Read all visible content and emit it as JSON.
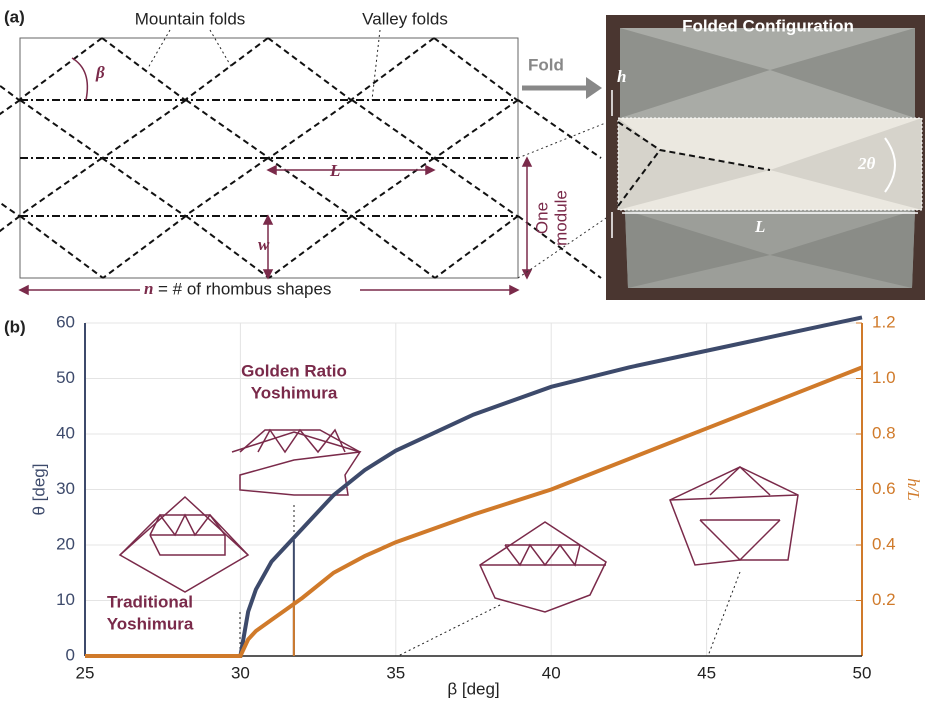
{
  "panel_a": {
    "label": "(a)",
    "mountain": "Mountain folds",
    "valley": "Valley folds",
    "beta": "β",
    "L": "L",
    "w": "w",
    "n": "n",
    "n_desc": "= # of rhombus shapes",
    "module": [
      "One",
      "module"
    ],
    "fold": "Fold",
    "photo_title": "Folded Configuration",
    "h": "h",
    "two_theta": "2θ",
    "photo_L": "L"
  },
  "chart_data": {
    "type": "line",
    "panel_label": "(b)",
    "x": [
      25,
      30,
      30.25,
      30.5,
      31,
      31.5,
      32,
      33,
      34,
      35,
      37.5,
      40,
      42.5,
      45,
      47.5,
      50
    ],
    "series": [
      {
        "color": "#3d4a6b",
        "values": [
          0,
          0,
          8,
          12,
          17,
          20,
          23,
          29,
          33.5,
          37,
          43.5,
          48.5,
          52,
          55,
          58,
          61
        ]
      },
      {
        "color": "#d07a2a",
        "axis": "y2",
        "values": [
          0,
          0,
          0.06,
          0.09,
          0.13,
          0.17,
          0.21,
          0.3,
          0.36,
          0.41,
          0.51,
          0.6,
          0.71,
          0.82,
          0.93,
          1.04
        ]
      }
    ],
    "guides": [
      {
        "x": 31.72,
        "y": 20.9
      },
      {
        "x": 31.72,
        "y": 0.2,
        "axis": "y2"
      }
    ],
    "xlim": [
      25,
      50
    ],
    "xticks": [
      25,
      30,
      35,
      40,
      45,
      50
    ],
    "ylim": [
      0,
      60
    ],
    "yticks": [
      0,
      10,
      20,
      30,
      40,
      50,
      60
    ],
    "y2lim": [
      0,
      1.2
    ],
    "y2ticks": [
      0.2,
      0.4,
      0.6,
      0.8,
      {
        "value": 1,
        "label": "1.0"
      },
      1.2
    ],
    "xlabel": "β [deg]",
    "ylabel": "θ [deg]",
    "y2label": "h/L",
    "grid": true,
    "annotations": [
      [
        "Golden Ratio",
        "Yoshimura"
      ],
      [
        "Traditional",
        "Yoshimura"
      ]
    ]
  }
}
